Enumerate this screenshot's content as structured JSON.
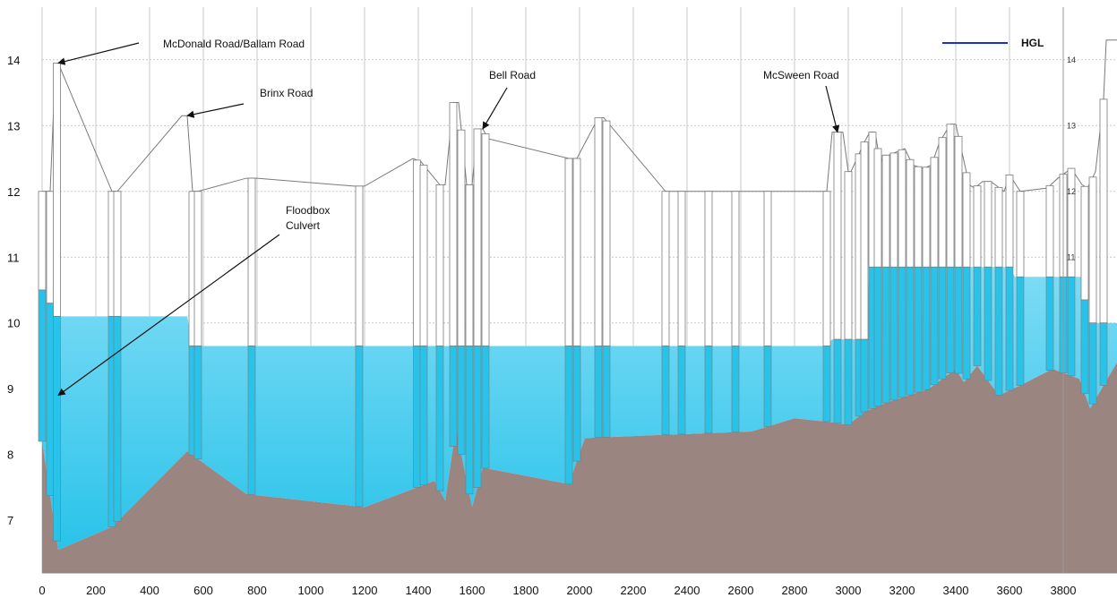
{
  "chart_data": {
    "type": "area",
    "title": "",
    "xlabel": "",
    "ylabel": "",
    "xlim": [
      0,
      4000
    ],
    "ylim": [
      6.2,
      14.8
    ],
    "grid": true,
    "legend": {
      "position": "top-right",
      "entries": [
        {
          "label": "HGL",
          "color": "#1a2fd6"
        }
      ]
    },
    "x_ticks": [
      0,
      200,
      400,
      600,
      800,
      1000,
      1200,
      1400,
      1600,
      1800,
      2000,
      2200,
      2400,
      2600,
      2800,
      3000,
      3200,
      3400,
      3600,
      3800
    ],
    "y_ticks": [
      7,
      8,
      9,
      10,
      11,
      12,
      13,
      14
    ],
    "right_axis_ticks": [
      11,
      12,
      13,
      14
    ],
    "colors": {
      "bed": "#9b8581",
      "water": "#29c3ea",
      "outline": "#7a7a7a",
      "grid": "#c8c8c8"
    },
    "series": [
      {
        "key": "ground",
        "points": [
          [
            0,
            12
          ],
          [
            30,
            12
          ],
          [
            50,
            13.95
          ],
          [
            60,
            13.95
          ],
          [
            260,
            12
          ],
          [
            280,
            12
          ],
          [
            520,
            13.15
          ],
          [
            540,
            13.15
          ],
          [
            560,
            12
          ],
          [
            580,
            12
          ],
          [
            760,
            12.2
          ],
          [
            800,
            12.2
          ],
          [
            1160,
            12.08
          ],
          [
            1200,
            12.08
          ],
          [
            1380,
            12.5
          ],
          [
            1410,
            12.45
          ],
          [
            1480,
            12.1
          ],
          [
            1500,
            12.1
          ],
          [
            1530,
            13.35
          ],
          [
            1550,
            13.35
          ],
          [
            1580,
            12.1
          ],
          [
            1600,
            12.1
          ],
          [
            1620,
            12.95
          ],
          [
            1640,
            12.95
          ],
          [
            1660,
            12.8
          ],
          [
            1960,
            12.5
          ],
          [
            1990,
            12.5
          ],
          [
            2070,
            13.12
          ],
          [
            2090,
            13.12
          ],
          [
            2320,
            12
          ],
          [
            2920,
            12
          ],
          [
            2940,
            12.9
          ],
          [
            2980,
            12.9
          ],
          [
            3000,
            12.3
          ],
          [
            3010,
            12.3
          ],
          [
            3060,
            12.75
          ],
          [
            3080,
            12.9
          ],
          [
            3100,
            12.9
          ],
          [
            3120,
            12.4
          ],
          [
            3130,
            12.55
          ],
          [
            3150,
            12.55
          ],
          [
            3180,
            12.6
          ],
          [
            3210,
            12.65
          ],
          [
            3240,
            12.4
          ],
          [
            3280,
            12.35
          ],
          [
            3310,
            12.4
          ],
          [
            3340,
            12.75
          ],
          [
            3380,
            13.02
          ],
          [
            3400,
            13.02
          ],
          [
            3450,
            12.1
          ],
          [
            3470,
            12.05
          ],
          [
            3500,
            12.15
          ],
          [
            3530,
            12.15
          ],
          [
            3580,
            12
          ],
          [
            3600,
            12.25
          ],
          [
            3640,
            12
          ],
          [
            3740,
            12.05
          ],
          [
            3780,
            12.2
          ],
          [
            3830,
            12.35
          ],
          [
            3870,
            12.1
          ],
          [
            3890,
            12.05
          ],
          [
            3920,
            12.3
          ],
          [
            3950,
            13.4
          ],
          [
            3960,
            14.3
          ],
          [
            4000,
            14.3
          ]
        ]
      },
      {
        "key": "bed",
        "points": [
          [
            0,
            8.2
          ],
          [
            60,
            6.55
          ],
          [
            260,
            6.9
          ],
          [
            540,
            8.05
          ],
          [
            760,
            7.4
          ],
          [
            1200,
            7.2
          ],
          [
            1460,
            7.6
          ],
          [
            1500,
            7.3
          ],
          [
            1540,
            8.4
          ],
          [
            1600,
            7.2
          ],
          [
            1640,
            7.8
          ],
          [
            1960,
            7.55
          ],
          [
            2020,
            8.25
          ],
          [
            2320,
            8.3
          ],
          [
            2640,
            8.35
          ],
          [
            2800,
            8.55
          ],
          [
            2920,
            8.5
          ],
          [
            3000,
            8.45
          ],
          [
            3060,
            8.65
          ],
          [
            3150,
            8.8
          ],
          [
            3300,
            9
          ],
          [
            3400,
            9.3
          ],
          [
            3430,
            9.1
          ],
          [
            3480,
            9.35
          ],
          [
            3560,
            8.9
          ],
          [
            3640,
            9.05
          ],
          [
            3760,
            9.3
          ],
          [
            3860,
            9.15
          ],
          [
            3900,
            8.7
          ],
          [
            3950,
            9.05
          ],
          [
            4000,
            9.4
          ]
        ]
      },
      {
        "key": "water",
        "points": [
          [
            0,
            10.5
          ],
          [
            20,
            10.5
          ],
          [
            40,
            10.1
          ],
          [
            540,
            10.1
          ],
          [
            560,
            9.65
          ],
          [
            2920,
            9.65
          ],
          [
            2940,
            9.75
          ],
          [
            3060,
            9.75
          ],
          [
            3080,
            10.85
          ],
          [
            3600,
            10.85
          ],
          [
            3620,
            10.7
          ],
          [
            3870,
            10.7
          ],
          [
            3890,
            10
          ],
          [
            4000,
            10
          ]
        ]
      }
    ],
    "annotations": [
      {
        "text": "McDonald Road/Ballam Road",
        "point_to": [
          60,
          13.95
        ]
      },
      {
        "text": "Brinx Road",
        "point_to": [
          540,
          13.15
        ]
      },
      {
        "text": "Bell Road",
        "point_to": [
          1640,
          12.95
        ]
      },
      {
        "text": "McSween Road",
        "point_to": [
          2960,
          12.9
        ]
      },
      {
        "text": "Floodbox",
        "point_to": null
      },
      {
        "text": "Culvert",
        "point_to": [
          60,
          8.9
        ]
      }
    ],
    "manholes": [
      0,
      30,
      55,
      260,
      280,
      560,
      580,
      780,
      1180,
      1395,
      1420,
      1480,
      1530,
      1560,
      1590,
      1620,
      1650,
      1960,
      1990,
      2070,
      2100,
      2320,
      2380,
      2480,
      2580,
      2700,
      2920,
      2960,
      3000,
      3040,
      3060,
      3090,
      3110,
      3140,
      3170,
      3200,
      3230,
      3260,
      3290,
      3320,
      3350,
      3380,
      3410,
      3440,
      3480,
      3520,
      3560,
      3600,
      3640,
      3750,
      3800,
      3830,
      3880,
      3910,
      3950
    ]
  }
}
